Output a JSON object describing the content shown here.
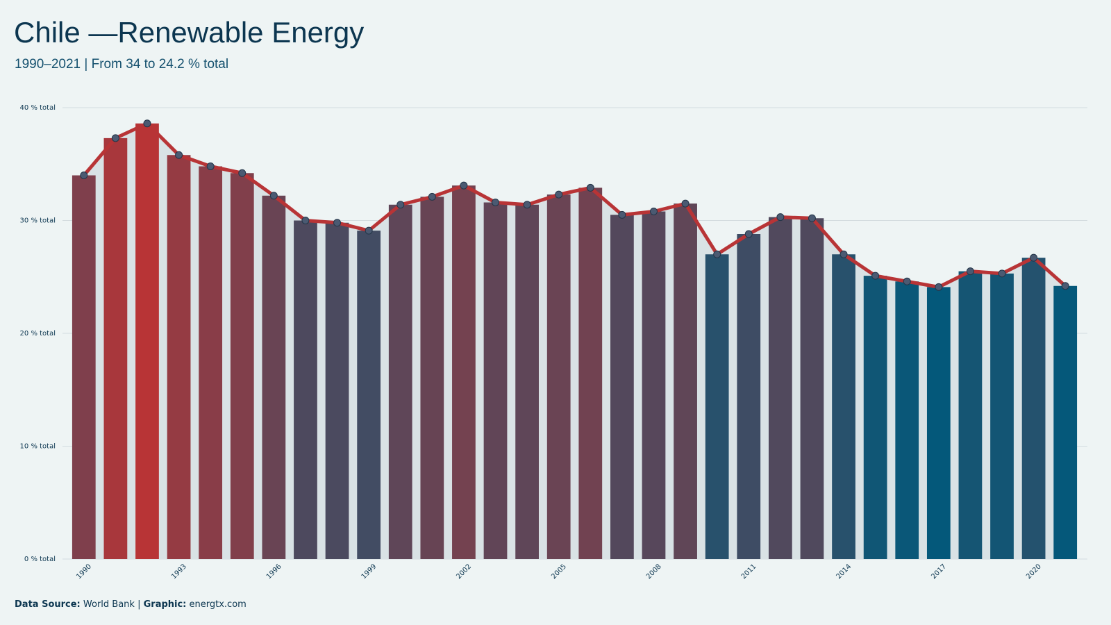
{
  "chart_data": {
    "type": "bar",
    "title": "Chile —Renewable Energy",
    "subtitle": "1990–2021 | From 34 to 24.2 % total",
    "footer": {
      "source_label": "Data Source:",
      "source": "World Bank |",
      "graphic_label": "Graphic:",
      "graphic": "energtx.com"
    },
    "categories": [
      "1990",
      null,
      null,
      "1993",
      null,
      null,
      "1996",
      null,
      null,
      "1999",
      null,
      null,
      "2002",
      null,
      null,
      "2005",
      null,
      null,
      "2008",
      null,
      null,
      "2011",
      null,
      null,
      "2014",
      null,
      null,
      "2017",
      null,
      null,
      "2020",
      null
    ],
    "values": [
      34.0,
      37.3,
      38.6,
      35.8,
      34.8,
      34.2,
      32.2,
      30.0,
      29.8,
      29.1,
      31.4,
      32.1,
      33.1,
      31.6,
      31.4,
      32.3,
      32.9,
      30.5,
      30.8,
      31.5,
      27.0,
      28.8,
      30.3,
      30.2,
      27.0,
      25.1,
      24.6,
      24.1,
      25.5,
      25.3,
      26.7,
      24.2
    ],
    "color_low": "#04587a",
    "color_high": "#b83436",
    "line_color": "#b83436",
    "point_color": "#4b5a72",
    "area_color": "#d9e2e5",
    "ylim": [
      0,
      40
    ],
    "yticks": [
      {
        "value": 0,
        "label": "0 % total"
      },
      {
        "value": 10,
        "label": "10 % total"
      },
      {
        "value": 20,
        "label": "20 % total"
      },
      {
        "value": 30,
        "label": "30 % total"
      },
      {
        "value": 40,
        "label": "40 % total"
      }
    ],
    "grid": true
  }
}
